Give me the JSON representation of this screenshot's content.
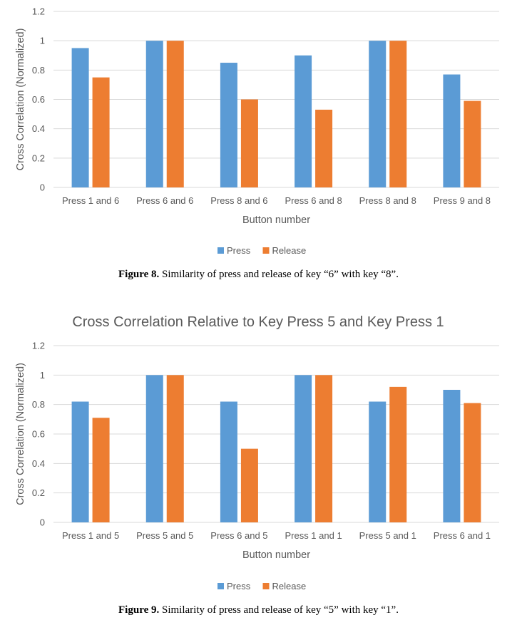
{
  "colors": {
    "press": "#5b9bd5",
    "release": "#ed7d31",
    "grid": "#d9d9d9",
    "text": "#595959"
  },
  "chart_data": [
    {
      "type": "bar",
      "title": "",
      "xlabel": "Button number",
      "ylabel": "Cross Correlation (Normalized)",
      "ylim": [
        0,
        1.2
      ],
      "yticks": [
        "0",
        "0.2",
        "0.4",
        "0.6",
        "0.8",
        "1",
        "1.2"
      ],
      "categories": [
        "Press 1 and 6",
        "Press 6 and 6",
        "Press 8 and 6",
        "Press 6 and 8",
        "Press 8 and 8",
        "Press 9 and 8"
      ],
      "series": [
        {
          "name": "Press",
          "values": [
            0.95,
            1.0,
            0.85,
            0.9,
            1.0,
            0.77
          ]
        },
        {
          "name": "Release",
          "values": [
            0.75,
            1.0,
            0.6,
            0.53,
            1.0,
            0.59
          ]
        }
      ],
      "grid": true,
      "legend": "bottom"
    },
    {
      "type": "bar",
      "title": "Cross Correlation Relative to Key Press 5 and Key Press 1",
      "xlabel": "Button number",
      "ylabel": "Cross Correlation (Normalized)",
      "ylim": [
        0,
        1.2
      ],
      "yticks": [
        "0",
        "0.2",
        "0.4",
        "0.6",
        "0.8",
        "1",
        "1.2"
      ],
      "categories": [
        "Press 1 and 5",
        "Press 5 and 5",
        "Press 6 and 5",
        "Press 1 and 1",
        "Press 5 and 1",
        "Press 6 and 1"
      ],
      "series": [
        {
          "name": "Press",
          "values": [
            0.82,
            1.0,
            0.82,
            1.0,
            0.82,
            0.9
          ]
        },
        {
          "name": "Release",
          "values": [
            0.71,
            1.0,
            0.5,
            1.0,
            0.92,
            0.81
          ]
        }
      ],
      "grid": true,
      "legend": "bottom"
    }
  ],
  "captions": [
    {
      "label": "Figure 8.",
      "text": " Similarity of press and release of key “6” with key “8”."
    },
    {
      "label": "Figure 9.",
      "text": " Similarity of press and release of key “5” with key “1”."
    }
  ]
}
